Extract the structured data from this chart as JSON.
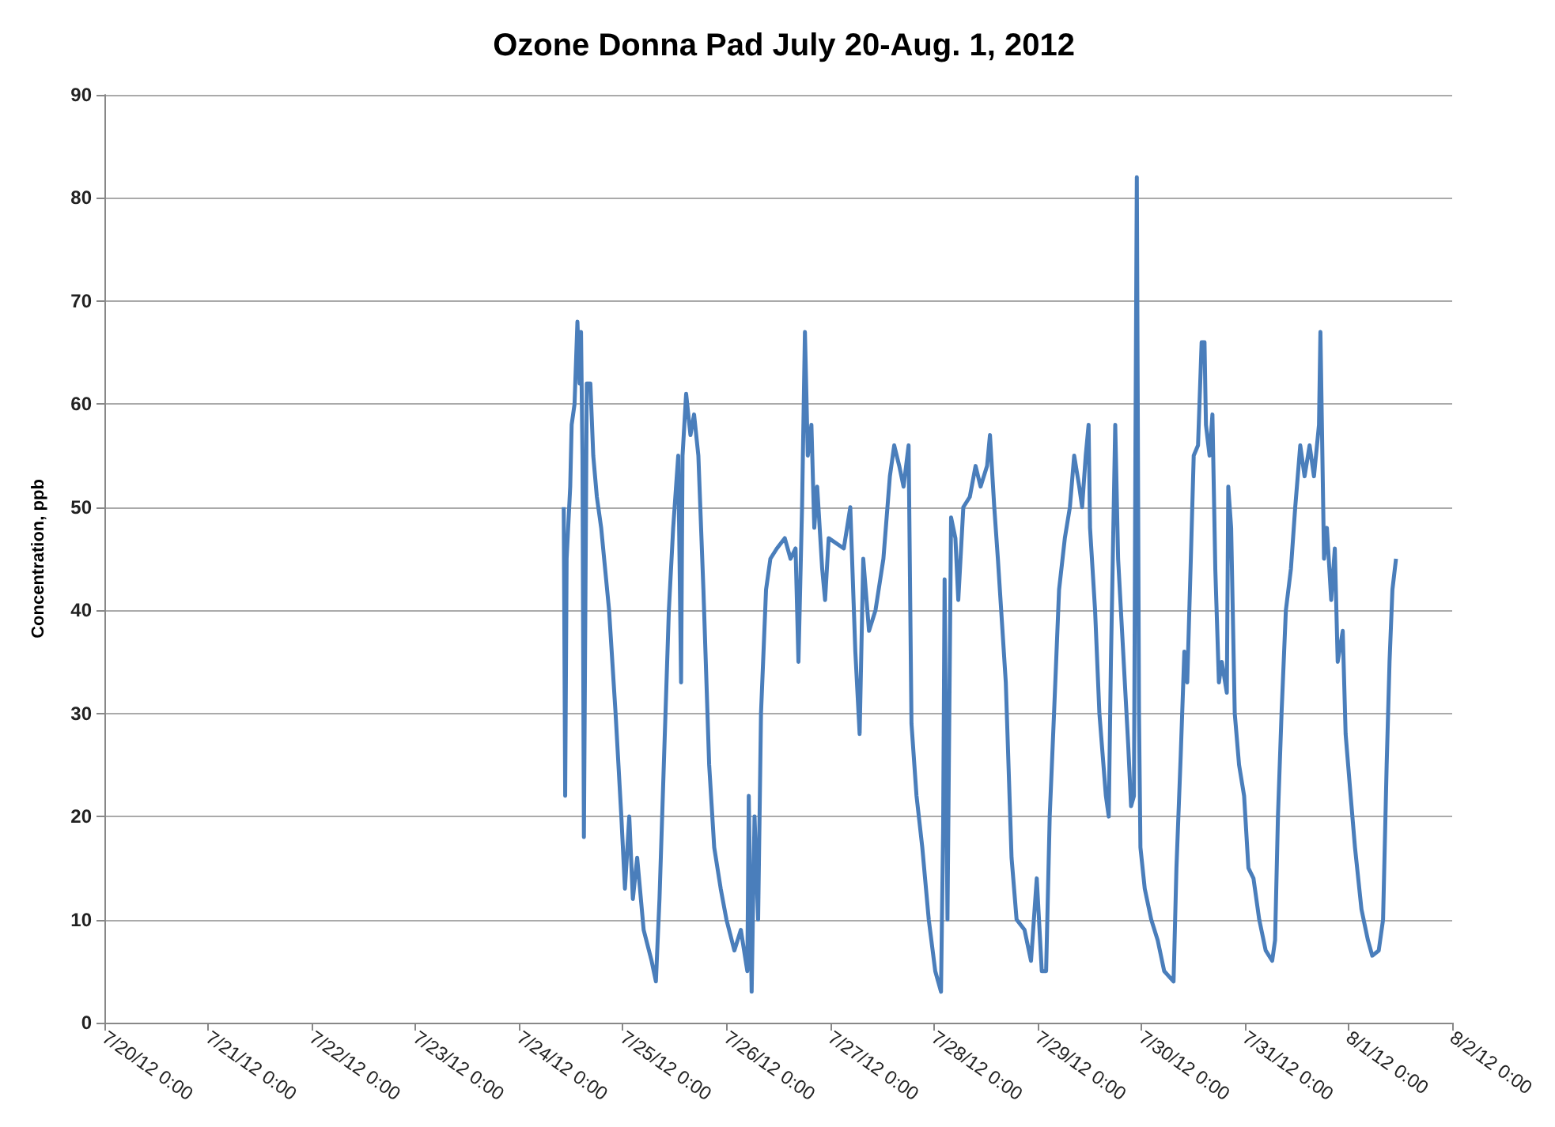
{
  "chart_data": {
    "type": "line",
    "title": "Ozone Donna Pad July 20-Aug. 1, 2012",
    "ylabel": "Concentration, ppb",
    "x": [
      "2012-07-24T10:20",
      "2012-07-24T10:40",
      "2012-07-24T11:00",
      "2012-07-24T11:50",
      "2012-07-24T12:10",
      "2012-07-24T12:50",
      "2012-07-24T13:30",
      "2012-07-24T14:00",
      "2012-07-24T14:20",
      "2012-07-24T14:40",
      "2012-07-24T15:00",
      "2012-07-24T15:20",
      "2012-07-24T15:40",
      "2012-07-24T16:30",
      "2012-07-24T17:10",
      "2012-07-24T18:00",
      "2012-07-24T19:00",
      "2012-07-24T20:50",
      "2012-07-24T22:20",
      "2012-07-24T23:40",
      "2012-07-25T00:30",
      "2012-07-25T01:30",
      "2012-07-25T02:20",
      "2012-07-25T03:20",
      "2012-07-25T04:50",
      "2012-07-25T06:40",
      "2012-07-25T07:40",
      "2012-07-25T08:30",
      "2012-07-25T09:30",
      "2012-07-25T10:40",
      "2012-07-25T11:40",
      "2012-07-25T12:50",
      "2012-07-25T13:30",
      "2012-07-25T13:50",
      "2012-07-25T14:40",
      "2012-07-25T15:40",
      "2012-07-25T16:30",
      "2012-07-25T17:30",
      "2012-07-25T18:40",
      "2012-07-25T20:00",
      "2012-07-25T21:10",
      "2012-07-25T22:40",
      "2012-07-26T00:00",
      "2012-07-26T01:50",
      "2012-07-26T03:20",
      "2012-07-26T04:50",
      "2012-07-26T05:10",
      "2012-07-26T05:50",
      "2012-07-26T06:30",
      "2012-07-26T07:20",
      "2012-07-26T08:00",
      "2012-07-26T09:10",
      "2012-07-26T10:10",
      "2012-07-26T11:40",
      "2012-07-26T13:30",
      "2012-07-26T14:50",
      "2012-07-26T16:00",
      "2012-07-26T16:40",
      "2012-07-26T17:30",
      "2012-07-26T18:10",
      "2012-07-26T18:50",
      "2012-07-26T19:40",
      "2012-07-26T20:20",
      "2012-07-26T21:00",
      "2012-07-26T22:10",
      "2012-07-26T22:50",
      "2012-07-26T23:40",
      "2012-07-27T03:10",
      "2012-07-27T04:40",
      "2012-07-27T05:50",
      "2012-07-27T06:50",
      "2012-07-27T07:40",
      "2012-07-27T09:00",
      "2012-07-27T10:30",
      "2012-07-27T12:20",
      "2012-07-27T13:50",
      "2012-07-27T14:50",
      "2012-07-27T16:00",
      "2012-07-27T17:00",
      "2012-07-27T18:10",
      "2012-07-27T18:50",
      "2012-07-27T20:00",
      "2012-07-27T21:20",
      "2012-07-27T22:50",
      "2012-07-28T00:20",
      "2012-07-28T01:40",
      "2012-07-28T02:10",
      "2012-07-28T02:30",
      "2012-07-28T03:10",
      "2012-07-28T04:00",
      "2012-07-28T05:00",
      "2012-07-28T05:40",
      "2012-07-28T06:50",
      "2012-07-28T08:20",
      "2012-07-28T09:40",
      "2012-07-28T10:50",
      "2012-07-28T12:20",
      "2012-07-28T13:00",
      "2012-07-28T14:00",
      "2012-07-28T14:50",
      "2012-07-28T16:40",
      "2012-07-28T18:00",
      "2012-07-28T19:10",
      "2012-07-28T21:00",
      "2012-07-28T22:30",
      "2012-07-28T23:50",
      "2012-07-29T01:00",
      "2012-07-29T02:00",
      "2012-07-29T02:50",
      "2012-07-29T03:50",
      "2012-07-29T05:00",
      "2012-07-29T06:20",
      "2012-07-29T07:30",
      "2012-07-29T08:30",
      "2012-07-29T09:40",
      "2012-07-29T10:20",
      "2012-07-29T11:10",
      "2012-07-29T11:50",
      "2012-07-29T12:10",
      "2012-07-29T13:20",
      "2012-07-29T14:20",
      "2012-07-29T15:50",
      "2012-07-29T16:30",
      "2012-07-29T17:00",
      "2012-07-29T18:00",
      "2012-07-29T18:40",
      "2012-07-29T19:50",
      "2012-07-29T21:00",
      "2012-07-29T21:40",
      "2012-07-29T22:20",
      "2012-07-29T22:40",
      "2012-07-29T23:00",
      "2012-07-29T23:30",
      "2012-07-29T23:50",
      "2012-07-30T00:50",
      "2012-07-30T02:20",
      "2012-07-30T03:50",
      "2012-07-30T05:20",
      "2012-07-30T07:30",
      "2012-07-30T08:10",
      "2012-07-30T09:10",
      "2012-07-30T10:00",
      "2012-07-30T10:40",
      "2012-07-30T11:30",
      "2012-07-30T12:10",
      "2012-07-30T13:10",
      "2012-07-30T14:00",
      "2012-07-30T14:40",
      "2012-07-30T15:00",
      "2012-07-30T15:50",
      "2012-07-30T16:30",
      "2012-07-30T17:10",
      "2012-07-30T18:00",
      "2012-07-30T18:40",
      "2012-07-30T19:50",
      "2012-07-30T20:10",
      "2012-07-30T20:50",
      "2012-07-30T21:40",
      "2012-07-30T22:40",
      "2012-07-30T23:50",
      "2012-07-31T00:50",
      "2012-07-31T02:00",
      "2012-07-31T03:20",
      "2012-07-31T04:50",
      "2012-07-31T06:20",
      "2012-07-31T07:00",
      "2012-07-31T07:40",
      "2012-07-31T08:30",
      "2012-07-31T09:30",
      "2012-07-31T10:40",
      "2012-07-31T11:40",
      "2012-07-31T12:50",
      "2012-07-31T13:50",
      "2012-07-31T15:00",
      "2012-07-31T16:00",
      "2012-07-31T17:10",
      "2012-07-31T17:30",
      "2012-07-31T18:20",
      "2012-07-31T19:00",
      "2012-07-31T20:00",
      "2012-07-31T20:50",
      "2012-07-31T21:30",
      "2012-07-31T22:40",
      "2012-07-31T23:20",
      "2012-08-01T00:30",
      "2012-08-01T01:30",
      "2012-08-01T03:00",
      "2012-08-01T04:30",
      "2012-08-01T05:30",
      "2012-08-01T07:00",
      "2012-08-01T08:00",
      "2012-08-01T08:50",
      "2012-08-01T09:30",
      "2012-08-01T10:10",
      "2012-08-01T11:00"
    ],
    "series": [
      {
        "color": "#4a7ebb",
        "values": [
          50,
          22,
          45,
          52,
          58,
          60,
          68,
          62,
          67,
          55,
          18,
          40,
          62,
          62,
          55,
          51,
          48,
          40,
          30,
          20,
          13,
          20,
          12,
          16,
          9,
          6,
          4,
          12,
          25,
          40,
          48,
          55,
          33,
          55,
          61,
          57,
          59,
          55,
          42,
          25,
          17,
          13,
          10,
          7,
          9,
          5,
          22,
          3,
          20,
          10,
          30,
          42,
          45,
          46,
          47,
          45,
          46,
          35,
          50,
          67,
          55,
          58,
          48,
          52,
          44,
          41,
          47,
          46,
          50,
          36,
          28,
          45,
          38,
          40,
          45,
          53,
          56,
          54,
          52,
          56,
          29,
          22,
          17,
          10,
          5,
          3,
          19,
          43,
          10,
          49,
          47,
          41,
          50,
          51,
          54,
          52,
          54,
          57,
          50,
          45,
          33,
          16,
          10,
          9,
          6,
          14,
          5,
          5,
          20,
          30,
          42,
          47,
          50,
          55,
          52,
          50,
          55,
          58,
          48,
          40,
          30,
          22,
          20,
          35,
          58,
          45,
          36,
          27,
          21,
          22,
          55,
          82,
          30,
          17,
          13,
          10,
          8,
          5,
          4,
          15,
          26,
          36,
          33,
          45,
          55,
          56,
          66,
          66,
          58,
          55,
          59,
          44,
          33,
          35,
          32,
          52,
          48,
          30,
          25,
          22,
          15,
          14,
          10,
          7,
          6,
          8,
          20,
          30,
          40,
          44,
          50,
          56,
          53,
          56,
          53,
          58,
          67,
          45,
          48,
          41,
          46,
          35,
          38,
          28,
          22,
          17,
          11,
          8,
          6.5,
          7,
          10,
          25,
          35,
          42,
          45
        ]
      }
    ],
    "xlim": [
      "2012-07-20",
      "2012-08-02"
    ],
    "xticks": [
      {
        "value": "2012-07-20",
        "label": "7/20/12 0:00"
      },
      {
        "value": "2012-07-21",
        "label": "7/21/12 0:00"
      },
      {
        "value": "2012-07-22",
        "label": "7/22/12 0:00"
      },
      {
        "value": "2012-07-23",
        "label": "7/23/12 0:00"
      },
      {
        "value": "2012-07-24",
        "label": "7/24/12 0:00"
      },
      {
        "value": "2012-07-25",
        "label": "7/25/12 0:00"
      },
      {
        "value": "2012-07-26",
        "label": "7/26/12 0:00"
      },
      {
        "value": "2012-07-27",
        "label": "7/27/12 0:00"
      },
      {
        "value": "2012-07-28",
        "label": "7/28/12 0:00"
      },
      {
        "value": "2012-07-29",
        "label": "7/29/12 0:00"
      },
      {
        "value": "2012-07-30",
        "label": "7/30/12 0:00"
      },
      {
        "value": "2012-07-31",
        "label": "7/31/12 0:00"
      },
      {
        "value": "2012-08-01",
        "label": "8/1/12 0:00"
      },
      {
        "value": "2012-08-02",
        "label": "8/2/12 0:00"
      }
    ],
    "ylim": [
      0,
      90
    ],
    "yticks": [
      0,
      10,
      20,
      30,
      40,
      50,
      60,
      70,
      80,
      90
    ],
    "grid": "y",
    "marker": "none",
    "line_style": "solid"
  }
}
